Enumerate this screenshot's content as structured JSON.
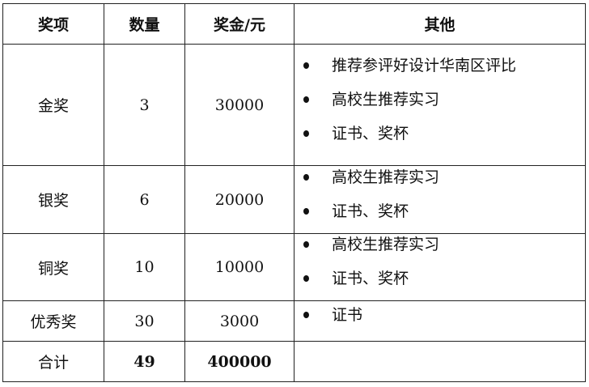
{
  "headers": [
    "奖项",
    "数量",
    "奖金/元",
    "其他"
  ],
  "rows": [
    {
      "award": "金奖",
      "count": "3",
      "prize": "30000",
      "other": [
        "推荐参评好设计华南区评比",
        "高校生推荐实习",
        "证书、奖杯"
      ]
    },
    {
      "award": "银奖",
      "count": "6",
      "prize": "20000",
      "other": [
        "高校生推荐实习",
        "证书、奖杯"
      ]
    },
    {
      "award": "铜奖",
      "count": "10",
      "prize": "10000",
      "other": [
        "高校生推荐实习",
        "证书、奖杯"
      ]
    },
    {
      "award": "优秀奖",
      "count": "30",
      "prize": "3000",
      "other": [
        "证书"
      ]
    }
  ],
  "total": {
    "label": "合计",
    "count": "49",
    "prize": "400000"
  }
}
